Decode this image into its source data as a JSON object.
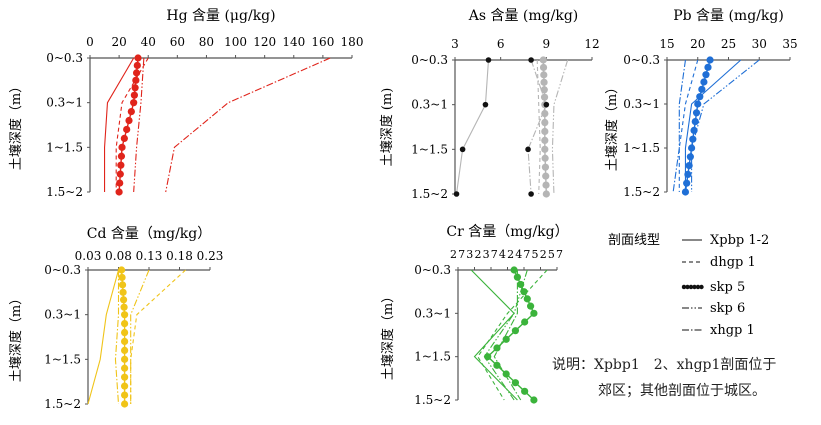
{
  "chart_data": [
    {
      "id": "hg",
      "type": "line",
      "title": "Hg 含量 (μg/kg)",
      "ylabel": "土壤深度（m）",
      "categories": [
        "0~0.3",
        "0.3~1",
        "1~1.5",
        "1.5~2"
      ],
      "xlim": [
        0,
        180
      ],
      "xticks": [
        "0",
        "20",
        "40",
        "60",
        "80",
        "100",
        "120",
        "140",
        "160",
        "180"
      ],
      "color": "#e0241b",
      "series": [
        {
          "profile": "Xpbp 1-2",
          "values": [
            30,
            12,
            10,
            10
          ]
        },
        {
          "profile": "dhgp 1",
          "values": [
            40,
            22,
            18,
            18
          ]
        },
        {
          "profile": "skp 5",
          "values": [
            33,
            30,
            22,
            20
          ]
        },
        {
          "profile": "skp 6",
          "values": [
            37,
            35,
            32,
            30
          ]
        },
        {
          "profile": "xhgp 1",
          "values": [
            165,
            95,
            58,
            52
          ]
        }
      ]
    },
    {
      "id": "as",
      "type": "line",
      "title": "As 含量 (mg/kg)",
      "ylabel": "土壤深度 (m)",
      "categories": [
        "0~0.3",
        "0.3~1",
        "1~1.5",
        "1.5~2"
      ],
      "xlim": [
        3,
        12
      ],
      "xticks": [
        "3",
        "6",
        "9",
        "12"
      ],
      "color": "#b5b5b5",
      "series": [
        {
          "profile": "Xpbp 1-2",
          "values": [
            5.2,
            5.0,
            3.5,
            3.1
          ]
        },
        {
          "profile": "dhgp 1",
          "values": [
            8.4,
            8.5,
            8.6,
            8.5
          ]
        },
        {
          "profile": "skp 5",
          "values": [
            8.8,
            8.9,
            8.9,
            9.0
          ]
        },
        {
          "profile": "skp 6",
          "values": [
            10.4,
            9.5,
            9.4,
            9.5
          ]
        },
        {
          "profile": "xhgp 1",
          "values": [
            8.0,
            9.0,
            7.8,
            8.0
          ]
        }
      ]
    },
    {
      "id": "pb",
      "type": "line",
      "title": "Pb 含量 (mg/kg)",
      "ylabel": "土壤深度（m）",
      "categories": [
        "0~0.3",
        "0.3~1",
        "1~1.5",
        "1.5~2"
      ],
      "xlim": [
        15,
        35
      ],
      "xticks": [
        "15",
        "20",
        "25",
        "30",
        "35"
      ],
      "color": "#1f6fd6",
      "series": [
        {
          "profile": "Xpbp 1-2",
          "values": [
            27,
            19,
            18,
            18
          ]
        },
        {
          "profile": "dhgp 1",
          "values": [
            20,
            18,
            17,
            17
          ]
        },
        {
          "profile": "skp 5",
          "values": [
            22,
            20,
            19,
            18
          ]
        },
        {
          "profile": "skp 6",
          "values": [
            30,
            21,
            19,
            19
          ]
        },
        {
          "profile": "xhgp 1",
          "values": [
            18,
            17,
            17,
            16
          ]
        }
      ]
    },
    {
      "id": "cd",
      "type": "line",
      "title": "Cd 含量（mg/kg）",
      "ylabel": "土壤深度（m）",
      "categories": [
        "0~0.3",
        "0.3~1",
        "1~1.5",
        "1.5~2"
      ],
      "xlim": [
        0.03,
        0.23
      ],
      "xticks": [
        "0.03",
        "0.08",
        "0.13",
        "0.18",
        "0.23"
      ],
      "color": "#f0c419",
      "series": [
        {
          "profile": "Xpbp 1-2",
          "values": [
            0.08,
            0.06,
            0.05,
            0.03
          ]
        },
        {
          "profile": "dhgp 1",
          "values": [
            0.19,
            0.11,
            0.1,
            0.1
          ]
        },
        {
          "profile": "skp 5",
          "values": [
            0.085,
            0.09,
            0.09,
            0.09
          ]
        },
        {
          "profile": "skp 6",
          "values": [
            0.13,
            0.1,
            0.1,
            0.1
          ]
        },
        {
          "profile": "xhgp 1",
          "values": [
            0.08,
            0.08,
            0.075,
            0.08
          ]
        }
      ]
    },
    {
      "id": "cr",
      "type": "line",
      "title": "Cr 含量（mg/kg）",
      "ylabel": "土壤深度（m）",
      "categories": [
        "0~0.3",
        "0.3~1",
        "1~1.5",
        "1.5~2"
      ],
      "xlim": [
        27,
        57
      ],
      "xticks": [
        "27",
        "32",
        "37",
        "42",
        "47",
        "52",
        "57"
      ],
      "xtick_text": "27323742475257",
      "color": "#3bb33b",
      "series": [
        {
          "profile": "Xpbp 1-2",
          "values": [
            31,
            44,
            32,
            45
          ]
        },
        {
          "profile": "dhgp 1",
          "values": [
            54,
            42,
            33,
            41
          ]
        },
        {
          "profile": "skp 5",
          "values": [
            44,
            50,
            36,
            50
          ]
        },
        {
          "profile": "skp 6",
          "values": [
            48,
            44,
            35,
            44
          ]
        },
        {
          "profile": "xhgp 1",
          "values": [
            45,
            45,
            38,
            46
          ]
        }
      ]
    }
  ],
  "legend": {
    "title": "剖面线型",
    "items": [
      {
        "label": "Xpbp 1-2",
        "style": "solid"
      },
      {
        "label": "dhgp 1",
        "style": "dashed"
      },
      {
        "label": "skp 5",
        "style": "dots"
      },
      {
        "label": "skp 6",
        "style": "dashdotdot"
      },
      {
        "label": "xhgp 1",
        "style": "dashdot"
      }
    ]
  },
  "note": {
    "line1": "说明：Xpbp1　2、xhgp1剖面位于",
    "line2": "郊区；其他剖面位于城区。"
  }
}
